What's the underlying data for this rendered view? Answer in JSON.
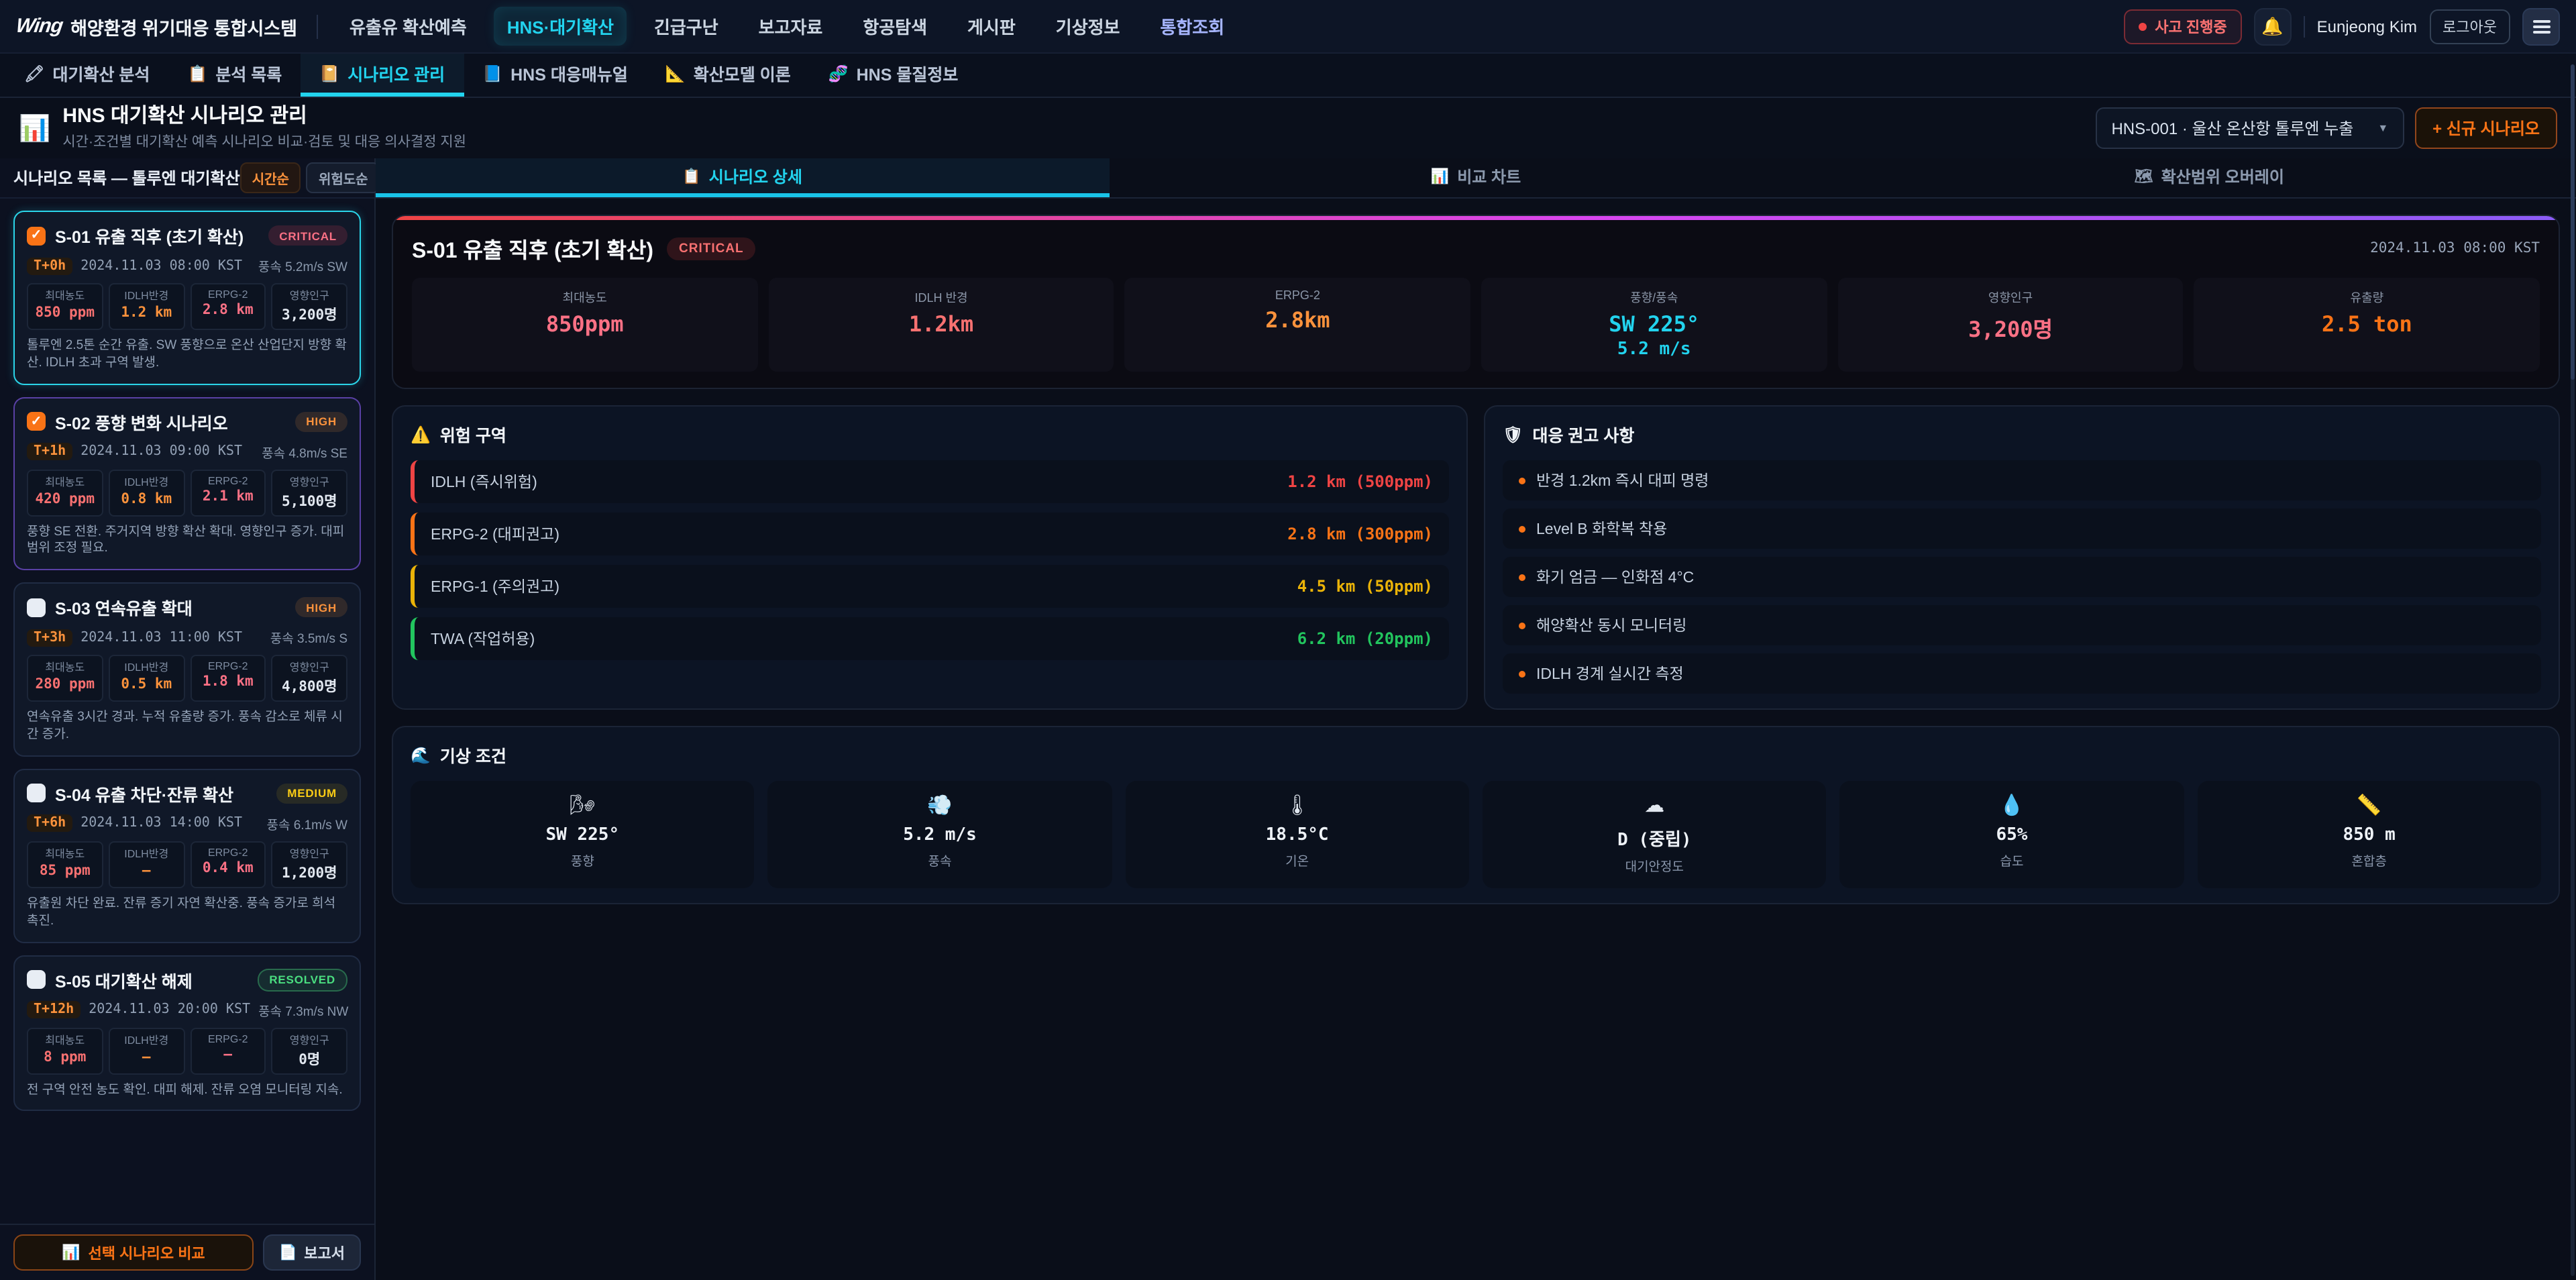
{
  "navbar": {
    "logo_mark": "Wing",
    "logo_text": "해양환경 위기대응 통합시스템",
    "items": [
      {
        "label": "유출유 확산예측"
      },
      {
        "label": "HNS·대기확산",
        "active": true
      },
      {
        "label": "긴급구난"
      },
      {
        "label": "보고자료"
      },
      {
        "label": "항공탐색"
      },
      {
        "label": "게시판"
      },
      {
        "label": "기상정보"
      },
      {
        "label": "통합조회",
        "accent": "purple"
      }
    ],
    "status_badge": "사고 진행중",
    "bell_icon": "🔔",
    "user_name": "Eunjeong Kim",
    "logout_label": "로그아웃"
  },
  "subnav": {
    "tabs": [
      {
        "icon": "🖍",
        "label": "대기확산 분석"
      },
      {
        "icon": "📋",
        "label": "분석 목록"
      },
      {
        "icon": "📔",
        "label": "시나리오 관리",
        "active": true
      },
      {
        "icon": "📘",
        "label": "HNS 대응매뉴얼"
      },
      {
        "icon": "📐",
        "label": "확산모델 이론"
      },
      {
        "icon": "🧬",
        "label": "HNS 물질정보"
      }
    ]
  },
  "page_header": {
    "icon": "📊",
    "title": "HNS 대기확산 시나리오 관리",
    "subtitle": "시간·조건별 대기확산 예측 시나리오 비교·검토 및 대응 의사결정 지원",
    "selector_value": "HNS-001 · 울산 온산항 톨루엔 누출",
    "caret_icon": "▼",
    "new_button": "+ 신규 시나리오"
  },
  "sidebar": {
    "title": "시나리오 목록 — 톨루엔 대기확산",
    "sort_buttons": [
      {
        "label": "시간순",
        "active": true
      },
      {
        "label": "위험도순"
      }
    ],
    "cards": [
      {
        "title": "S-01 유출 직후 (초기 확산)",
        "severity": "critical",
        "severity_label": "CRITICAL",
        "checked": true,
        "accent": "cyan",
        "time_offset": "T+0h",
        "datetime": "2024.11.03 08:00 KST",
        "wind": "풍속 5.2m/s SW",
        "stats": [
          {
            "label": "최대농도",
            "value": "850 ppm"
          },
          {
            "label": "IDLH반경",
            "value": "1.2 km"
          },
          {
            "label": "ERPG-2",
            "value": "2.8 km"
          },
          {
            "label": "영향인구",
            "value": "3,200명"
          }
        ],
        "desc": "톨루엔 2.5톤 순간 유출. SW 풍향으로 온산 산업단지 방향 확산. IDLH 초과 구역 발생."
      },
      {
        "title": "S-02 풍향 변화 시나리오",
        "severity": "high",
        "severity_label": "HIGH",
        "checked": true,
        "accent": "purple",
        "time_offset": "T+1h",
        "datetime": "2024.11.03 09:00 KST",
        "wind": "풍속 4.8m/s SE",
        "stats": [
          {
            "label": "최대농도",
            "value": "420 ppm"
          },
          {
            "label": "IDLH반경",
            "value": "0.8 km"
          },
          {
            "label": "ERPG-2",
            "value": "2.1 km"
          },
          {
            "label": "영향인구",
            "value": "5,100명"
          }
        ],
        "desc": "풍향 SE 전환. 주거지역 방향 확산 확대. 영향인구 증가. 대피 범위 조정 필요."
      },
      {
        "title": "S-03 연속유출 확대",
        "severity": "high",
        "severity_label": "HIGH",
        "checked": false,
        "time_offset": "T+3h",
        "datetime": "2024.11.03 11:00 KST",
        "wind": "풍속 3.5m/s S",
        "stats": [
          {
            "label": "최대농도",
            "value": "280 ppm"
          },
          {
            "label": "IDLH반경",
            "value": "0.5 km"
          },
          {
            "label": "ERPG-2",
            "value": "1.8 km"
          },
          {
            "label": "영향인구",
            "value": "4,800명"
          }
        ],
        "desc": "연속유출 3시간 경과. 누적 유출량 증가. 풍속 감소로 체류 시간 증가."
      },
      {
        "title": "S-04 유출 차단·잔류 확산",
        "severity": "medium",
        "severity_label": "MEDIUM",
        "checked": false,
        "time_offset": "T+6h",
        "datetime": "2024.11.03 14:00 KST",
        "wind": "풍속 6.1m/s W",
        "stats": [
          {
            "label": "최대농도",
            "value": "85 ppm"
          },
          {
            "label": "IDLH반경",
            "value": "—"
          },
          {
            "label": "ERPG-2",
            "value": "0.4 km"
          },
          {
            "label": "영향인구",
            "value": "1,200명"
          }
        ],
        "desc": "유출원 차단 완료. 잔류 증기 자연 확산중. 풍속 증가로 희석 촉진."
      },
      {
        "title": "S-05 대기확산 해제",
        "severity": "resolved",
        "severity_label": "RESOLVED",
        "checked": false,
        "time_offset": "T+12h",
        "datetime": "2024.11.03 20:00 KST",
        "wind": "풍속 7.3m/s NW",
        "stats": [
          {
            "label": "최대농도",
            "value": "8 ppm"
          },
          {
            "label": "IDLH반경",
            "value": "—"
          },
          {
            "label": "ERPG-2",
            "value": "—"
          },
          {
            "label": "영향인구",
            "value": "0명"
          }
        ],
        "desc": "전 구역 안전 농도 확인. 대피 해제. 잔류 오염 모니터링 지속."
      }
    ],
    "compare_icon": "📊",
    "compare_label": "선택 시나리오 비교",
    "report_icon": "📄",
    "report_label": "보고서"
  },
  "main": {
    "tabs": [
      {
        "icon": "📋",
        "label": "시나리오 상세",
        "active": true
      },
      {
        "icon": "📊",
        "label": "비교 차트"
      },
      {
        "icon": "🗺",
        "label": "확산범위 오버레이"
      }
    ],
    "detail": {
      "title": "S-01 유출 직후 (초기 확산)",
      "badge": "CRITICAL",
      "timestamp": "2024.11.03 08:00 KST",
      "metrics": [
        {
          "label": "최대농도",
          "value": "850ppm",
          "color": "#fb7185"
        },
        {
          "label": "IDLH 반경",
          "value": "1.2km",
          "color": "#f87171"
        },
        {
          "label": "ERPG-2",
          "value": "2.8km",
          "color": "#fb923c"
        },
        {
          "label": "풍향/풍속",
          "value": "SW 225°",
          "value2": "5.2 m/s",
          "color": "#22d3ee"
        },
        {
          "label": "영향인구",
          "value": "3,200명",
          "color": "#fb7185"
        },
        {
          "label": "유출량",
          "value": "2.5 ton",
          "color": "#f97316"
        }
      ]
    },
    "danger_zones": {
      "icon": "⚠️",
      "title": "위험 구역",
      "rows": [
        {
          "label": "IDLH (즉시위험)",
          "value": "1.2 km (500ppm)",
          "color": "#ef4444"
        },
        {
          "label": "ERPG-2 (대피권고)",
          "value": "2.8 km (300ppm)",
          "color": "#f97316"
        },
        {
          "label": "ERPG-1 (주의권고)",
          "value": "4.5 km (50ppm)",
          "color": "#eab308"
        },
        {
          "label": "TWA (작업허용)",
          "value": "6.2 km (20ppm)",
          "color": "#22c55e"
        }
      ]
    },
    "recommendations": {
      "icon": "🛡",
      "title": "대응 권고 사항",
      "items": [
        {
          "text": "반경 1.2km 즉시 대피 명령"
        },
        {
          "text": "Level B 화학복 착용"
        },
        {
          "text": "화기 엄금 — 인화점 4°C"
        },
        {
          "text": "해양확산 동시 모니터링"
        },
        {
          "text": "IDLH 경계 실시간 측정"
        }
      ]
    },
    "weather": {
      "icon": "🌊",
      "title": "기상 조건",
      "cards": [
        {
          "icon": "🌬",
          "value": "SW 225°",
          "label": "풍향"
        },
        {
          "icon": "💨",
          "value": "5.2 m/s",
          "label": "풍속"
        },
        {
          "icon": "🌡",
          "value": "18.5°C",
          "label": "기온"
        },
        {
          "icon": "☁",
          "value": "D (중립)",
          "label": "대기안정도"
        },
        {
          "icon": "💧",
          "value": "65%",
          "label": "습도"
        },
        {
          "icon": "📏",
          "value": "850 m",
          "label": "혼합층"
        }
      ]
    }
  }
}
